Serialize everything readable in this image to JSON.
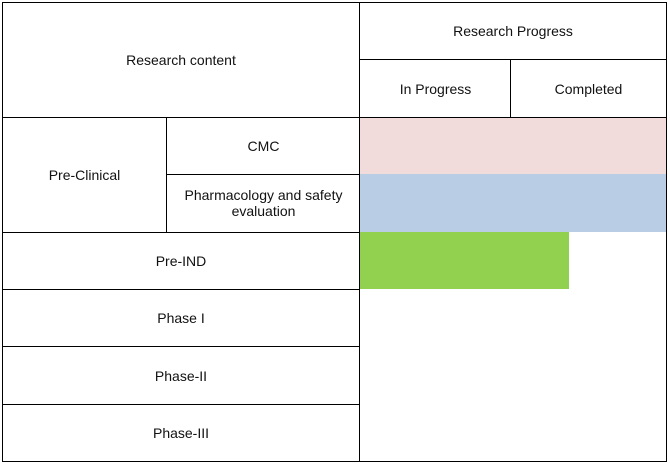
{
  "header": {
    "research_content": "Research content",
    "research_progress": "Research Progress",
    "in_progress": "In Progress",
    "completed": "Completed"
  },
  "rows": {
    "pre_clinical": "Pre-Clinical",
    "cmc": "CMC",
    "pharmacology_line1": "Pharmacology and safety",
    "pharmacology_line2": "evaluation",
    "pre_ind": "Pre-IND",
    "phase_1": "Phase I",
    "phase_2": "Phase-II",
    "phase_3": "Phase-III"
  },
  "progress": {
    "cmc": {
      "fraction": 1.0,
      "color": "#f2dcdb"
    },
    "pharmacology": {
      "fraction": 1.0,
      "color": "#b9cde5"
    },
    "pre_ind": {
      "fraction": 0.68,
      "color": "#92d050"
    },
    "phase_1": {
      "fraction": 0
    },
    "phase_2": {
      "fraction": 0
    },
    "phase_3": {
      "fraction": 0
    }
  }
}
